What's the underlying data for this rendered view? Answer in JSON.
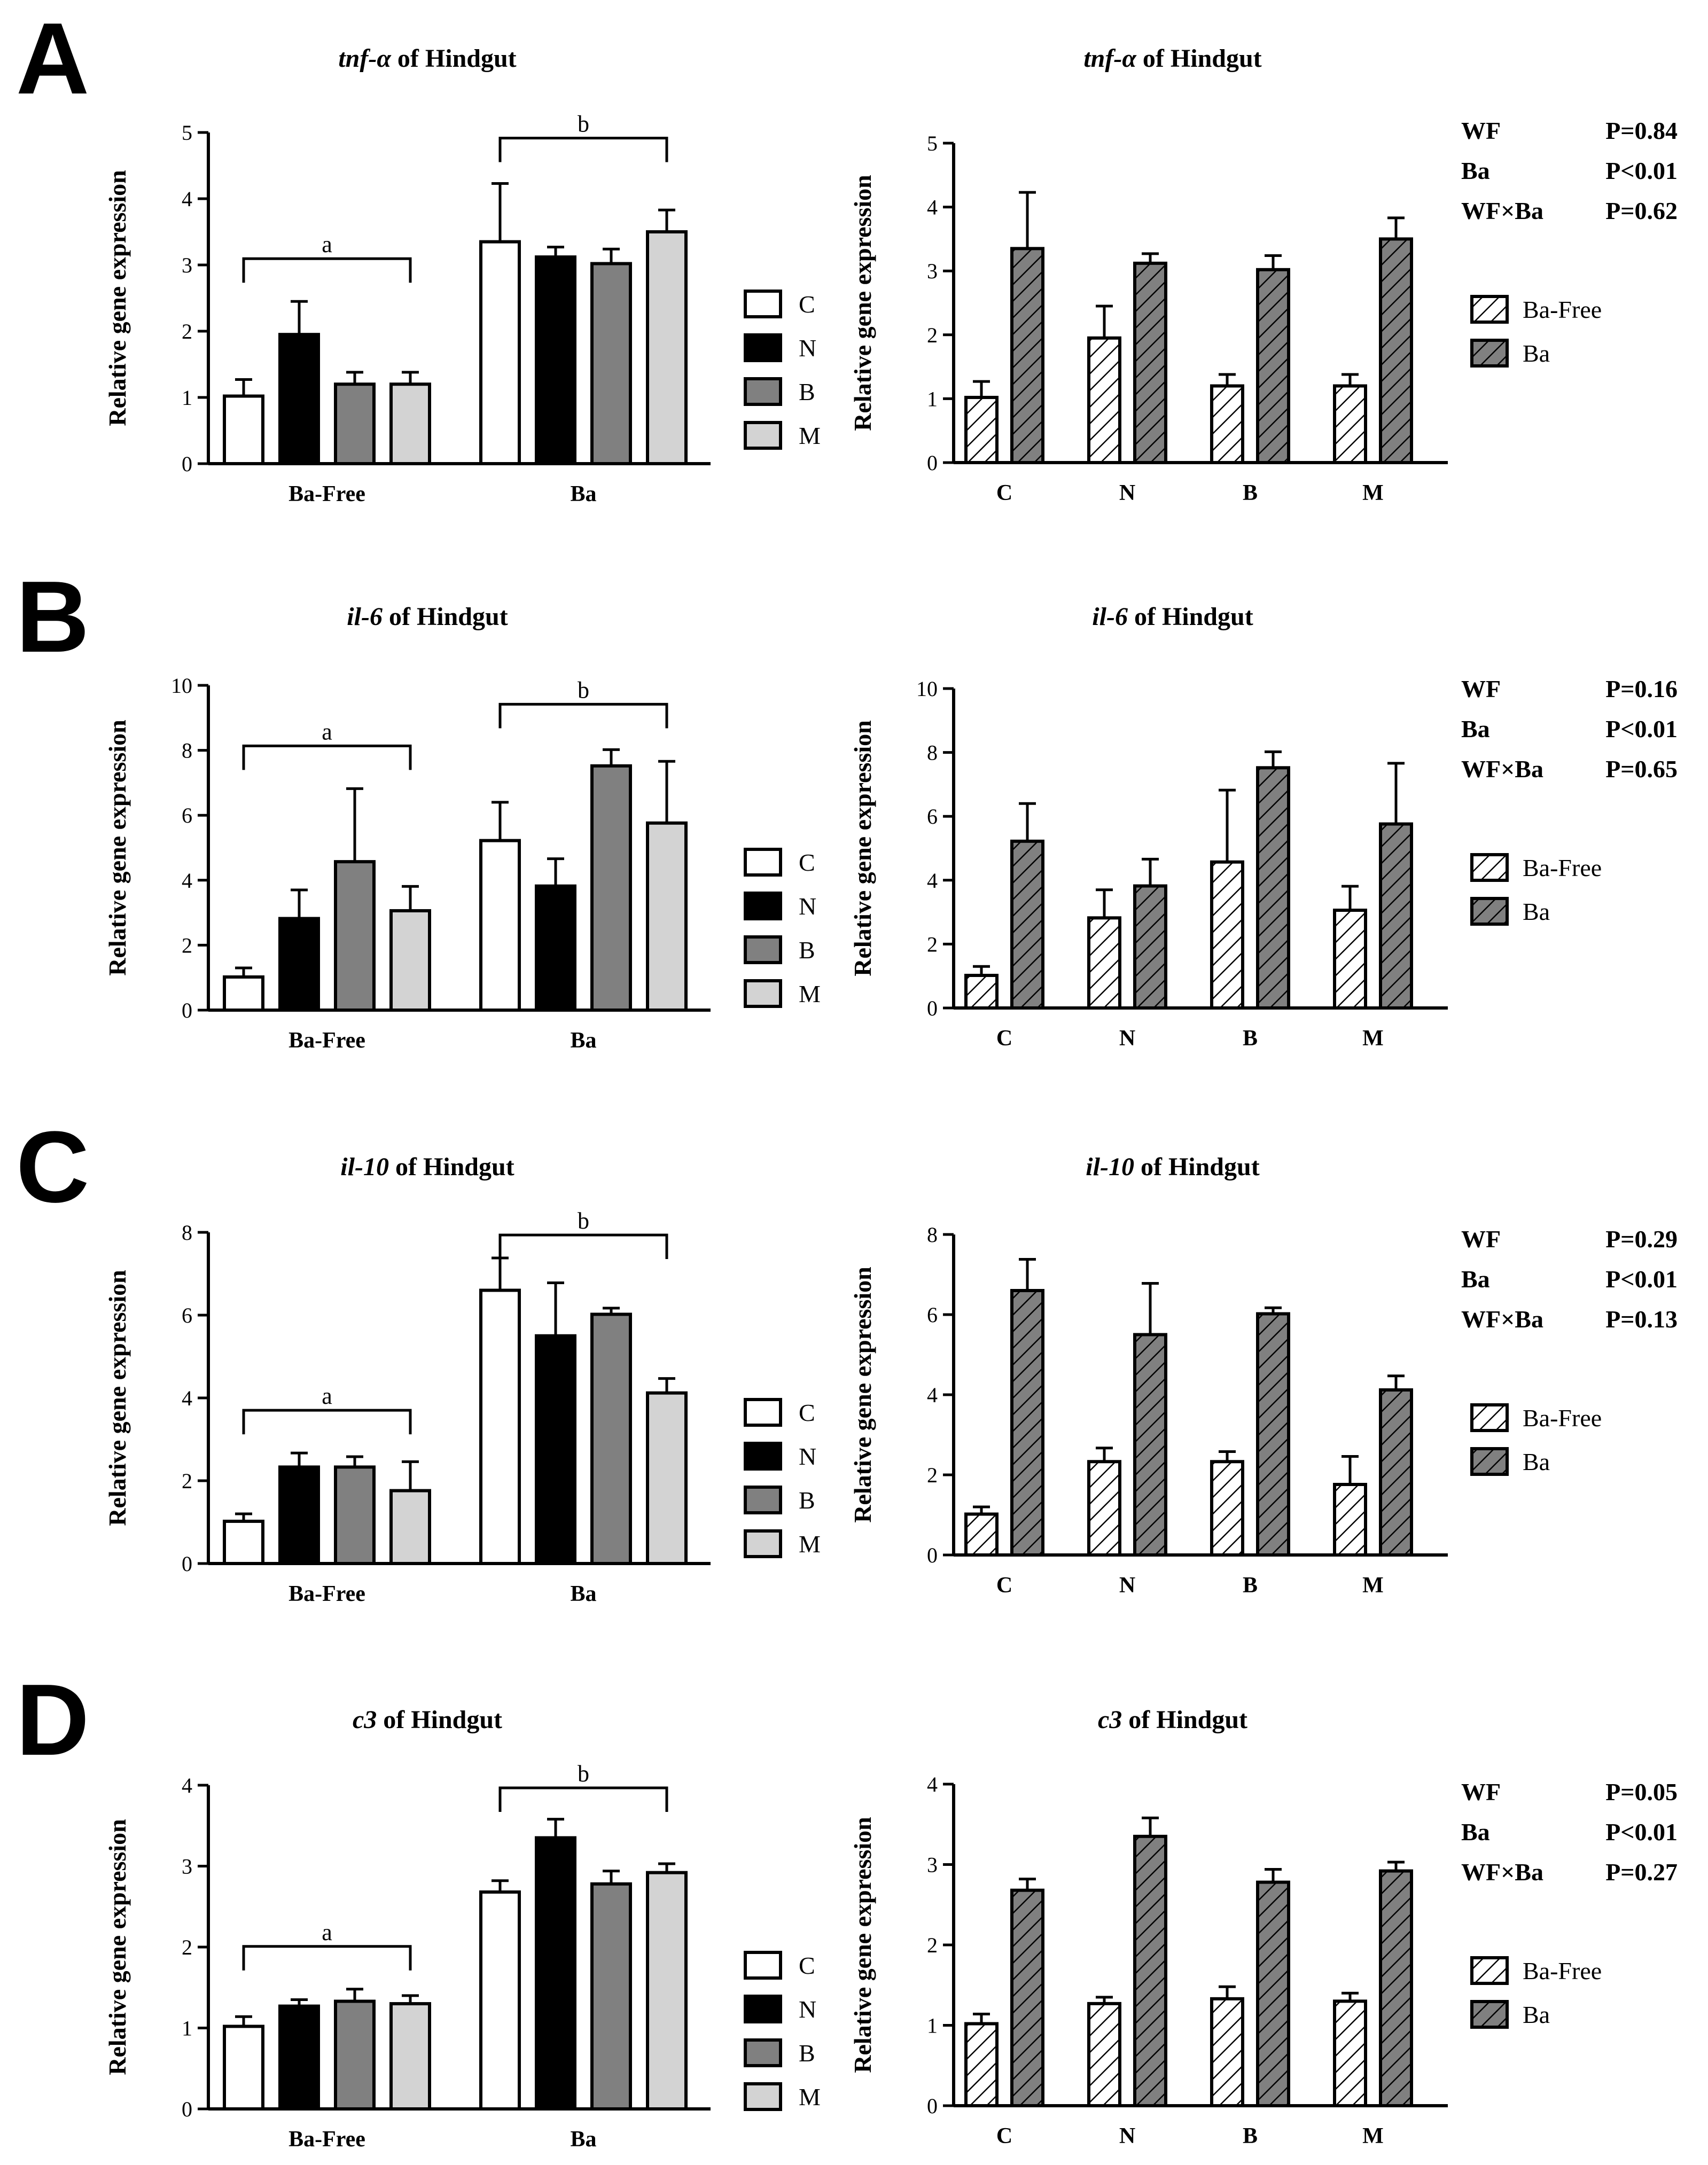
{
  "colors": {
    "C": "#ffffff",
    "N": "#000000",
    "B": "#808080",
    "M": "#d3d3d3",
    "ba_free_hatch": "#ffffff",
    "ba_hatch": "#808080",
    "axis": "#000000"
  },
  "shared": {
    "ylabel": "Relative gene expression",
    "groups": [
      "Ba-Free",
      "Ba"
    ],
    "treatments": [
      "C",
      "N",
      "B",
      "M"
    ],
    "legend_left": [
      "C",
      "N",
      "B",
      "M"
    ],
    "legend_right": [
      "Ba-Free",
      "Ba"
    ],
    "sig_letters": [
      "a",
      "b"
    ],
    "stats_labels": [
      "WF",
      "Ba",
      "WF×Ba"
    ]
  },
  "chart_data": [
    {
      "panel": "A",
      "gene": "tnf-α",
      "title_suffix": "of Hindgut",
      "type": "bar",
      "ylim": [
        0,
        5
      ],
      "yticks": [
        "0",
        "1",
        "2",
        "3",
        "4",
        "5"
      ],
      "series": [
        {
          "name": "Ba-Free",
          "means": [
            1.02,
            1.95,
            1.2,
            1.2
          ],
          "errors": [
            0.25,
            0.5,
            0.18,
            0.18
          ]
        },
        {
          "name": "Ba",
          "means": [
            3.35,
            3.12,
            3.02,
            3.5
          ],
          "errors": [
            0.88,
            0.15,
            0.22,
            0.33
          ]
        }
      ],
      "stats": [
        {
          "label": "WF",
          "value": "P=0.84"
        },
        {
          "label": "Ba",
          "value": "P<0.01"
        },
        {
          "label": "WF×Ba",
          "value": "P=0.62"
        }
      ]
    },
    {
      "panel": "B",
      "gene": "il-6",
      "title_suffix": "of Hindgut",
      "type": "bar",
      "ylim": [
        0,
        10
      ],
      "yticks": [
        "0",
        "2",
        "4",
        "6",
        "8",
        "10"
      ],
      "series": [
        {
          "name": "Ba-Free",
          "means": [
            1.02,
            2.82,
            4.57,
            3.06
          ],
          "errors": [
            0.28,
            0.88,
            2.25,
            0.75
          ]
        },
        {
          "name": "Ba",
          "means": [
            5.22,
            3.82,
            7.52,
            5.76
          ],
          "errors": [
            1.18,
            0.84,
            0.5,
            1.9
          ]
        }
      ],
      "stats": [
        {
          "label": "WF",
          "value": "P=0.16"
        },
        {
          "label": "Ba",
          "value": "P<0.01"
        },
        {
          "label": "WF×Ba",
          "value": "P=0.65"
        }
      ]
    },
    {
      "panel": "C",
      "gene": "il-10",
      "title_suffix": "of Hindgut",
      "type": "bar",
      "ylim": [
        0,
        8
      ],
      "yticks": [
        "0",
        "2",
        "4",
        "6",
        "8"
      ],
      "series": [
        {
          "name": "Ba-Free",
          "means": [
            1.02,
            2.33,
            2.33,
            1.76
          ],
          "errors": [
            0.18,
            0.34,
            0.25,
            0.7
          ]
        },
        {
          "name": "Ba",
          "means": [
            6.6,
            5.5,
            6.02,
            4.12
          ],
          "errors": [
            0.78,
            1.28,
            0.15,
            0.35
          ]
        }
      ],
      "stats": [
        {
          "label": "WF",
          "value": "P=0.29"
        },
        {
          "label": "Ba",
          "value": "P<0.01"
        },
        {
          "label": "WF×Ba",
          "value": "P=0.13"
        }
      ]
    },
    {
      "panel": "D",
      "gene": "c3",
      "title_suffix": "of Hindgut",
      "type": "bar",
      "ylim": [
        0,
        4
      ],
      "yticks": [
        "0",
        "1",
        "2",
        "3",
        "4"
      ],
      "series": [
        {
          "name": "Ba-Free",
          "means": [
            1.02,
            1.27,
            1.33,
            1.3
          ],
          "errors": [
            0.12,
            0.08,
            0.15,
            0.1
          ]
        },
        {
          "name": "Ba",
          "means": [
            2.68,
            3.35,
            2.78,
            2.92
          ],
          "errors": [
            0.14,
            0.23,
            0.16,
            0.11
          ]
        }
      ],
      "stats": [
        {
          "label": "WF",
          "value": "P=0.05"
        },
        {
          "label": "Ba",
          "value": "P<0.01"
        },
        {
          "label": "WF×Ba",
          "value": "P=0.27"
        }
      ]
    }
  ]
}
